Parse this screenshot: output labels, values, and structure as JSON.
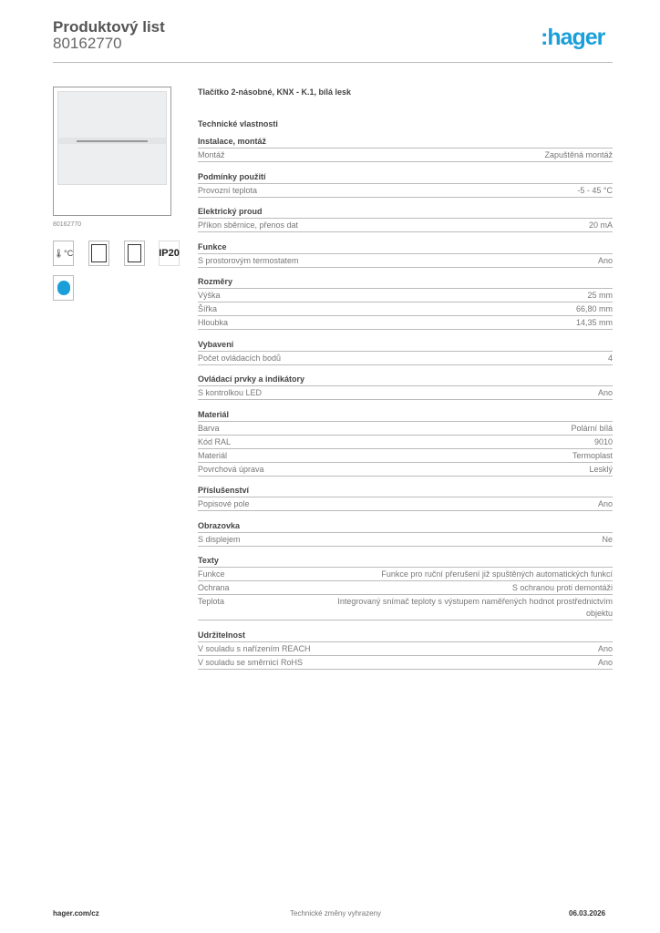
{
  "header": {
    "title": "Produktový list",
    "code": "80162770",
    "logo": ":hager"
  },
  "product": {
    "image_code": "80162770",
    "title": "Tlačítko 2-násobné, KNX - K.1, bílá lesk",
    "tech_heading": "Technické vlastnosti",
    "icons": [
      "thermometer-icon",
      "display-icon",
      "sensor-icon",
      "IP20",
      "energy-label-icon"
    ]
  },
  "sections": [
    {
      "heading": "Instalace, montáž",
      "rows": [
        [
          "Montáž",
          "Zapuštěná montáž"
        ]
      ]
    },
    {
      "heading": "Podmínky použití",
      "rows": [
        [
          "Provozní teplota",
          "-5 - 45 °C"
        ]
      ]
    },
    {
      "heading": "Elektrický proud",
      "rows": [
        [
          "Příkon sběrnice, přenos dat",
          "20 mA"
        ]
      ]
    },
    {
      "heading": "Funkce",
      "rows": [
        [
          "S prostorovým termostatem",
          "Ano"
        ]
      ]
    },
    {
      "heading": "Rozměry",
      "rows": [
        [
          "Výška",
          "25 mm"
        ],
        [
          "Šířka",
          "66,80 mm"
        ],
        [
          "Hloubka",
          "14,35 mm"
        ]
      ]
    },
    {
      "heading": "Vybavení",
      "rows": [
        [
          "Počet ovládacích bodů",
          "4"
        ]
      ]
    },
    {
      "heading": "Ovládací prvky a indikátory",
      "rows": [
        [
          "S kontrolkou LED",
          "Ano"
        ]
      ]
    },
    {
      "heading": "Materiál",
      "rows": [
        [
          "Barva",
          "Polární bílá"
        ],
        [
          "Kód RAL",
          "9010"
        ],
        [
          "Materiál",
          "Termoplast"
        ],
        [
          "Povrchová úprava",
          "Lesklý"
        ]
      ]
    },
    {
      "heading": "Příslušenství",
      "rows": [
        [
          "Popisové pole",
          "Ano"
        ]
      ]
    },
    {
      "heading": "Obrazovka",
      "rows": [
        [
          "S displejem",
          "Ne"
        ]
      ]
    },
    {
      "heading": "Texty",
      "rows": [
        [
          "Funkce",
          "Funkce pro ruční přerušení již spuštěných automatických funkcí"
        ],
        [
          "Ochrana",
          "S ochranou proti demontáži"
        ],
        [
          "Teplota",
          "Integrovaný snímač teploty s výstupem naměřených hodnot prostřednictvím objektu"
        ]
      ]
    },
    {
      "heading": "Udržitelnost",
      "rows": [
        [
          "V souladu s nařízením REACH",
          "Ano"
        ],
        [
          "V souladu se směrnicí RoHS",
          "Ano"
        ]
      ]
    }
  ],
  "footer": {
    "website": "hager.com/cz",
    "note": "Technické změny vyhrazeny",
    "date": "06.03.2026"
  },
  "colors": {
    "brand": "#1a9fd9"
  }
}
